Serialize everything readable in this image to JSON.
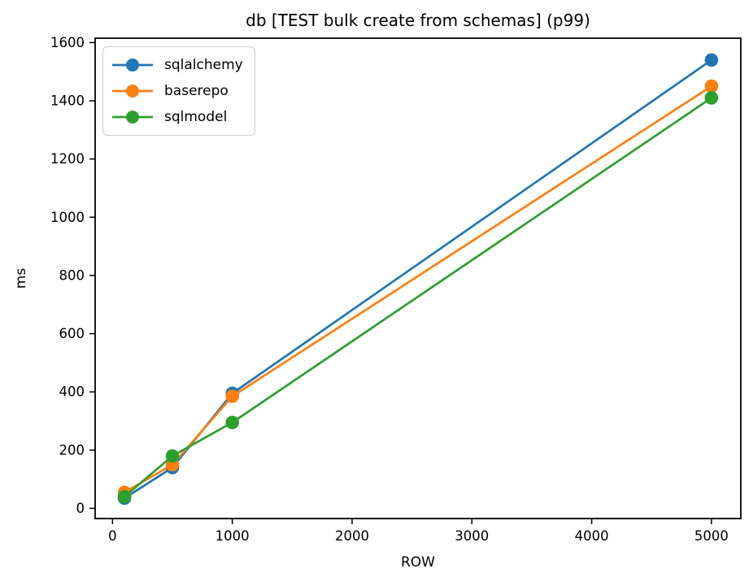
{
  "chart_data": {
    "type": "line",
    "title": "db [TEST bulk create from schemas] (p99)",
    "xlabel": "ROW",
    "ylabel": "ms",
    "x": [
      100,
      500,
      1000,
      5000
    ],
    "series": [
      {
        "name": "sqlalchemy",
        "color": "#1f77b4",
        "values": [
          35,
          140,
          395,
          1540
        ]
      },
      {
        "name": "baserepo",
        "color": "#ff7f0e",
        "values": [
          55,
          150,
          385,
          1450
        ]
      },
      {
        "name": "sqlmodel",
        "color": "#2ca02c",
        "values": [
          40,
          180,
          295,
          1410
        ]
      }
    ],
    "xticks": [
      0,
      1000,
      2000,
      3000,
      4000,
      5000
    ],
    "yticks": [
      0,
      200,
      400,
      600,
      800,
      1000,
      1200,
      1400,
      1600
    ],
    "xlim": [
      -145,
      5245
    ],
    "ylim": [
      -35,
      1615
    ],
    "grid": false,
    "legend": {
      "position": "upper-left",
      "entries": [
        "sqlalchemy",
        "baserepo",
        "sqlmodel"
      ]
    },
    "axis_color": "#000000",
    "background": "#ffffff"
  }
}
